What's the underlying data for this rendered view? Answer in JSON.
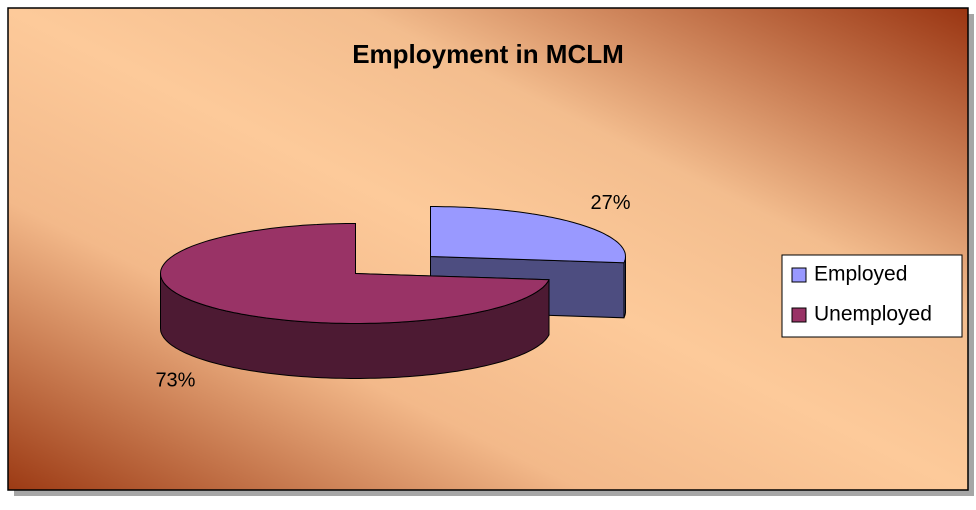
{
  "chart_data": {
    "type": "pie",
    "title": "Employment in MCLM",
    "categories": [
      "Employed",
      "Unemployed"
    ],
    "values": [
      27,
      73
    ],
    "value_labels": [
      "27%",
      "73%"
    ],
    "colors": [
      "#9999ff",
      "#993366"
    ],
    "legend": "right"
  }
}
